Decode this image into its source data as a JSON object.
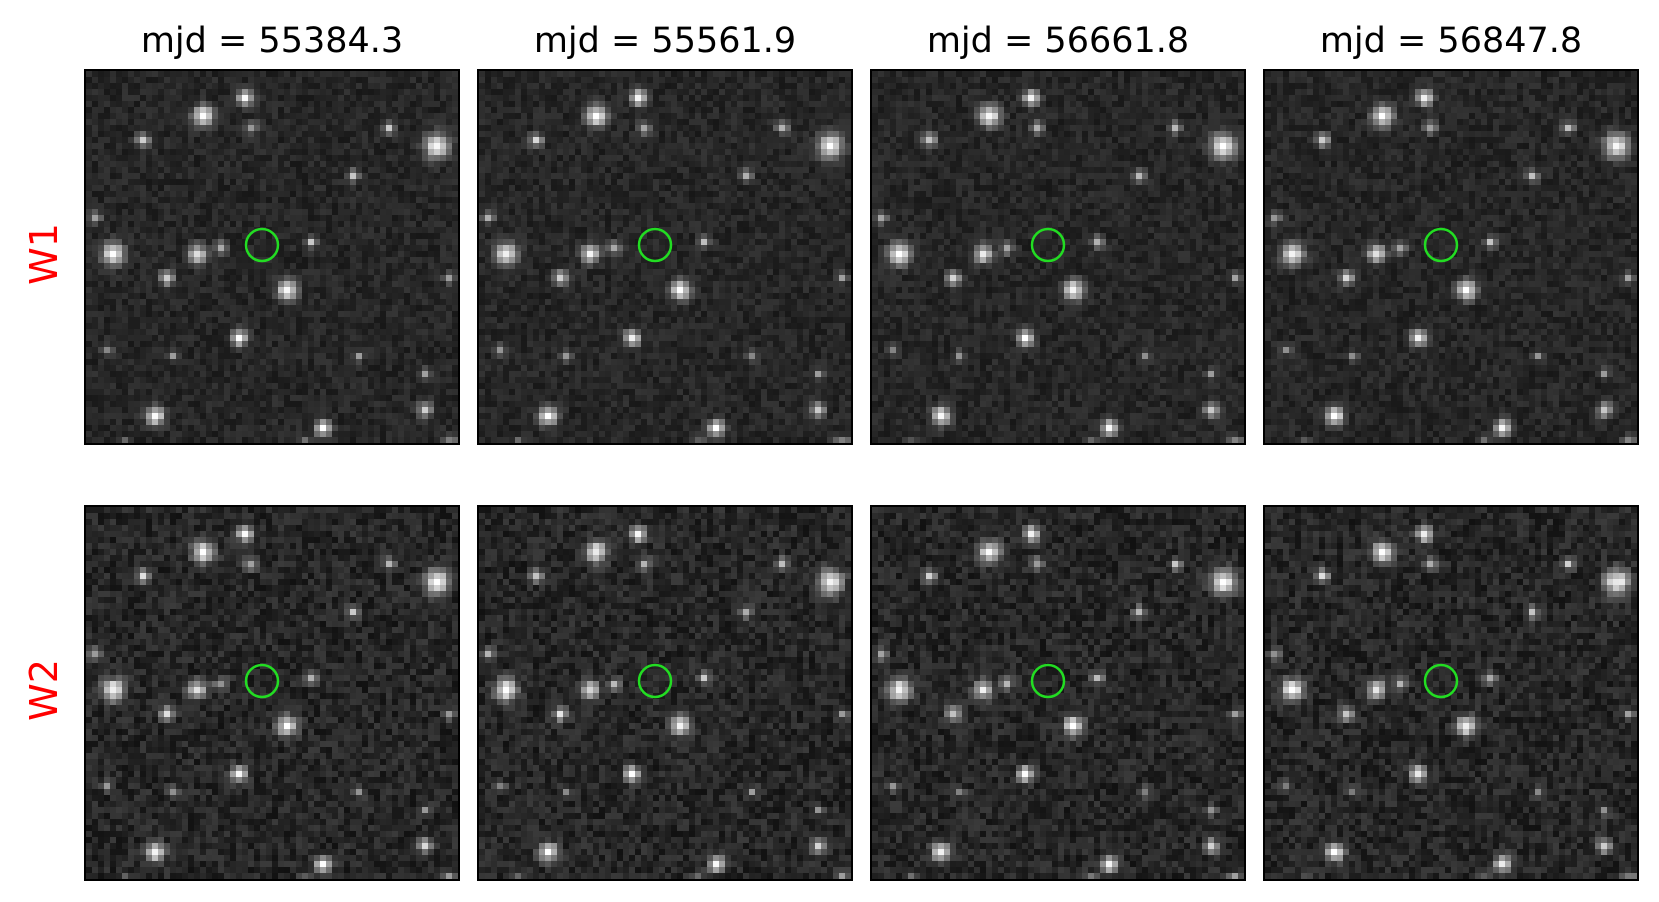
{
  "columns": [
    {
      "title": "mjd = 55384.3"
    },
    {
      "title": "mjd = 55561.9"
    },
    {
      "title": "mjd = 56661.8"
    },
    {
      "title": "mjd = 56847.8"
    }
  ],
  "rows": [
    {
      "label": "W1",
      "color": "#ff0000"
    },
    {
      "label": "W2",
      "color": "#ff0000"
    }
  ],
  "marker": {
    "shape": "circle",
    "color": "#22dd22"
  },
  "colormap": "grayscale"
}
